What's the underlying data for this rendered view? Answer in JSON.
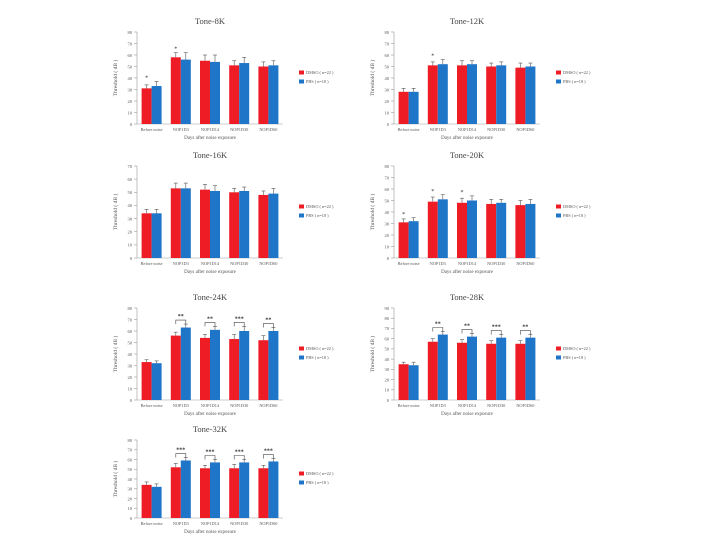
{
  "chart_data": [
    {
      "type": "bar",
      "title": "Tone-8K",
      "categories": [
        "Before noise",
        "NOP1D3",
        "NOP1D14",
        "NOP1D30",
        "NOP1D60"
      ],
      "xlabel": "Days after noise exposure",
      "ylabel": "Threshold ( dB )",
      "ylim": [
        0,
        80
      ],
      "yticks": [
        0,
        10,
        20,
        30,
        40,
        50,
        60,
        70,
        80
      ],
      "legend_position": "right",
      "series": [
        {
          "name": "DMSO ( n=22 )",
          "color": "#ee1c25",
          "values": [
            31,
            58,
            55,
            51,
            50
          ],
          "errors": [
            3,
            4,
            5,
            4,
            4
          ]
        },
        {
          "name": "PBS ( n=18 )",
          "color": "#1f75c8",
          "values": [
            33,
            56,
            54,
            53,
            51
          ],
          "errors": [
            4,
            6,
            6,
            5,
            4
          ]
        }
      ],
      "annotations": [
        {
          "category": 0,
          "text": "*"
        },
        {
          "category": 1,
          "text": "*"
        }
      ],
      "brackets": []
    },
    {
      "type": "bar",
      "title": "Tone-12K",
      "categories": [
        "Before noise",
        "NOP1D3",
        "NOP1D14",
        "NOP1D30",
        "NOP1D60"
      ],
      "xlabel": "Days after noise exposure",
      "ylabel": "Threshold ( dB )",
      "ylim": [
        0,
        80
      ],
      "yticks": [
        0,
        10,
        20,
        30,
        40,
        50,
        60,
        70,
        80
      ],
      "legend_position": "right",
      "series": [
        {
          "name": "DMSO ( n=22 )",
          "color": "#ee1c25",
          "values": [
            28,
            51,
            51,
            50,
            49
          ],
          "errors": [
            3,
            3,
            4,
            3,
            4
          ]
        },
        {
          "name": "PBS ( n=18 )",
          "color": "#1f75c8",
          "values": [
            28,
            52,
            52,
            51,
            50
          ],
          "errors": [
            3,
            4,
            3,
            3,
            3
          ]
        }
      ],
      "annotations": [
        {
          "category": 1,
          "text": "*"
        }
      ],
      "brackets": []
    },
    {
      "type": "bar",
      "title": "Tone-16K",
      "categories": [
        "Before noise",
        "NOP1D3",
        "NOP1D14",
        "NOP1D30",
        "NOP1D60"
      ],
      "xlabel": "Days after noise exposure",
      "ylabel": "Threshold ( dB )",
      "ylim": [
        0,
        70
      ],
      "yticks": [
        0,
        10,
        20,
        30,
        40,
        50,
        60,
        70
      ],
      "legend_position": "right",
      "series": [
        {
          "name": "DMSO ( n=22 )",
          "color": "#ee1c25",
          "values": [
            34,
            53,
            52,
            50,
            48
          ],
          "errors": [
            3,
            4,
            4,
            3,
            3
          ]
        },
        {
          "name": "PBS ( n=18 )",
          "color": "#1f75c8",
          "values": [
            34,
            53,
            51,
            51,
            49
          ],
          "errors": [
            3,
            4,
            4,
            3,
            4
          ]
        }
      ],
      "annotations": [],
      "brackets": []
    },
    {
      "type": "bar",
      "title": "Tone-20K",
      "categories": [
        "Before noise",
        "NOP1D3",
        "NOP1D14",
        "NOP1D30",
        "NOP1D60"
      ],
      "xlabel": "Days after noise exposure",
      "ylabel": "Threshold ( dB )",
      "ylim": [
        0,
        80
      ],
      "yticks": [
        0,
        10,
        20,
        30,
        40,
        50,
        60,
        70,
        80
      ],
      "legend_position": "right",
      "series": [
        {
          "name": "DMSO ( n=22 )",
          "color": "#ee1c25",
          "values": [
            31,
            49,
            48,
            47,
            46
          ],
          "errors": [
            3,
            4,
            4,
            4,
            4
          ]
        },
        {
          "name": "PBS ( n=18 )",
          "color": "#1f75c8",
          "values": [
            32,
            51,
            50,
            48,
            47
          ],
          "errors": [
            3,
            4,
            4,
            3,
            4
          ]
        }
      ],
      "annotations": [
        {
          "category": 0,
          "text": "*"
        },
        {
          "category": 1,
          "text": "*"
        },
        {
          "category": 2,
          "text": "*"
        }
      ],
      "brackets": []
    },
    {
      "type": "bar",
      "title": "Tone-24K",
      "categories": [
        "Before noise",
        "NOP1D3",
        "NOP1D14",
        "NOP1D30",
        "NOP1D60"
      ],
      "xlabel": "Days after noise exposure",
      "ylabel": "Threshold ( dB )",
      "ylim": [
        0,
        80
      ],
      "yticks": [
        0,
        10,
        20,
        30,
        40,
        50,
        60,
        70,
        80
      ],
      "legend_position": "right",
      "series": [
        {
          "name": "DMSO ( n=22 )",
          "color": "#ee1c25",
          "values": [
            33,
            56,
            54,
            53,
            52
          ],
          "errors": [
            2,
            3,
            3,
            4,
            4
          ]
        },
        {
          "name": "PBS ( n=18 )",
          "color": "#1f75c8",
          "values": [
            32,
            63,
            61,
            60,
            60
          ],
          "errors": [
            2,
            3,
            3,
            4,
            3
          ]
        }
      ],
      "annotations": [],
      "brackets": [
        {
          "category": 1,
          "text": "**"
        },
        {
          "category": 2,
          "text": "**"
        },
        {
          "category": 3,
          "text": "***"
        },
        {
          "category": 4,
          "text": "**"
        }
      ]
    },
    {
      "type": "bar",
      "title": "Tone-28K",
      "categories": [
        "Before noise",
        "NOP1D3",
        "NOP1D14",
        "NOP1D30",
        "NOP1D60"
      ],
      "xlabel": "Days after noise exposure",
      "ylabel": "Threshold ( dB )",
      "ylim": [
        0,
        90
      ],
      "yticks": [
        0,
        10,
        20,
        30,
        40,
        50,
        60,
        70,
        80,
        90
      ],
      "legend_position": "right",
      "series": [
        {
          "name": "DMSO ( n=22 )",
          "color": "#ee1c25",
          "values": [
            35,
            57,
            56,
            55,
            55
          ],
          "errors": [
            2,
            3,
            3,
            3,
            3
          ]
        },
        {
          "name": "PBS ( n=18 )",
          "color": "#1f75c8",
          "values": [
            34,
            64,
            62,
            61,
            61
          ],
          "errors": [
            3,
            3,
            3,
            3,
            3
          ]
        }
      ],
      "annotations": [],
      "brackets": [
        {
          "category": 1,
          "text": "**"
        },
        {
          "category": 2,
          "text": "**"
        },
        {
          "category": 3,
          "text": "***"
        },
        {
          "category": 4,
          "text": "**"
        }
      ]
    },
    {
      "type": "bar",
      "title": "Tone-32K",
      "categories": [
        "Before noise",
        "NOP1D3",
        "NOP1D14",
        "NOP1D30",
        "NOP1D60"
      ],
      "xlabel": "Days after noise exposure",
      "ylabel": "Threshold ( dB )",
      "ylim": [
        0,
        80
      ],
      "yticks": [
        0,
        10,
        20,
        30,
        40,
        50,
        60,
        70,
        80
      ],
      "legend_position": "right",
      "series": [
        {
          "name": "DMSO ( n=22 )",
          "color": "#ee1c25",
          "values": [
            34,
            52,
            51,
            51,
            51
          ],
          "errors": [
            3,
            4,
            3,
            4,
            3
          ]
        },
        {
          "name": "PBS ( n=18 )",
          "color": "#1f75c8",
          "values": [
            32,
            59,
            57,
            57,
            58
          ],
          "errors": [
            3,
            3,
            3,
            3,
            3
          ]
        }
      ],
      "annotations": [],
      "brackets": [
        {
          "category": 1,
          "text": "***"
        },
        {
          "category": 2,
          "text": "***"
        },
        {
          "category": 3,
          "text": "***"
        },
        {
          "category": 4,
          "text": "***"
        }
      ]
    }
  ]
}
